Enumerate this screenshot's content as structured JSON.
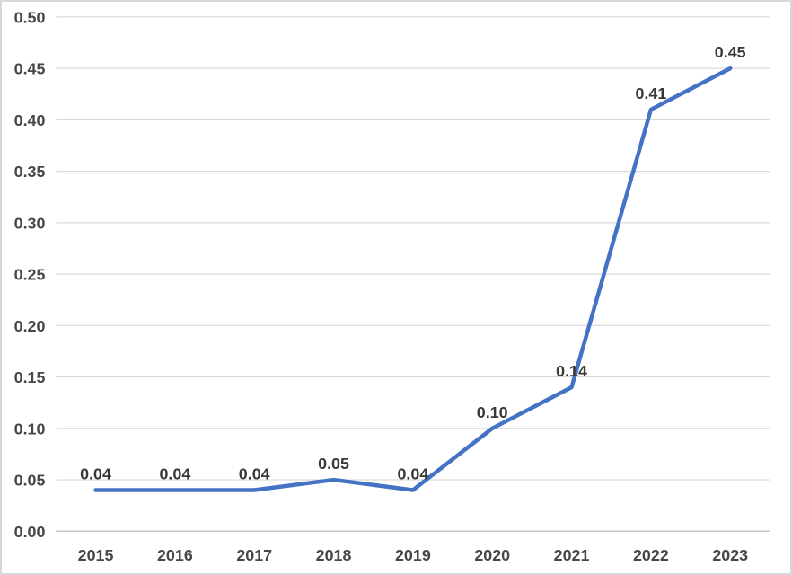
{
  "chart_data": {
    "type": "line",
    "title": "",
    "xlabel": "",
    "ylabel": "",
    "categories": [
      "2015",
      "2016",
      "2017",
      "2018",
      "2019",
      "2020",
      "2021",
      "2022",
      "2023"
    ],
    "values": [
      0.04,
      0.04,
      0.04,
      0.05,
      0.04,
      0.1,
      0.14,
      0.41,
      0.45
    ],
    "value_labels": [
      "0.04",
      "0.04",
      "0.04",
      "0.05",
      "0.04",
      "0.10",
      "0.14",
      "0.41",
      "0.45"
    ],
    "yticks": [
      0.0,
      0.05,
      0.1,
      0.15,
      0.2,
      0.25,
      0.3,
      0.35,
      0.4,
      0.45,
      0.5
    ],
    "ytick_labels": [
      "0.00",
      "0.05",
      "0.10",
      "0.15",
      "0.20",
      "0.25",
      "0.30",
      "0.35",
      "0.40",
      "0.45",
      "0.50"
    ],
    "ylim": [
      0.0,
      0.5
    ],
    "grid": "horizontal",
    "legend": "none",
    "data_labels_position": "above",
    "colors": {
      "line": "#4472C4",
      "gridline": "#d9d9d9",
      "axis_line": "#c6c6c6",
      "axis_text": "#474747",
      "data_label_text": "#383838",
      "background": "#ffffff",
      "frame_border": "#d7d7d7"
    }
  }
}
